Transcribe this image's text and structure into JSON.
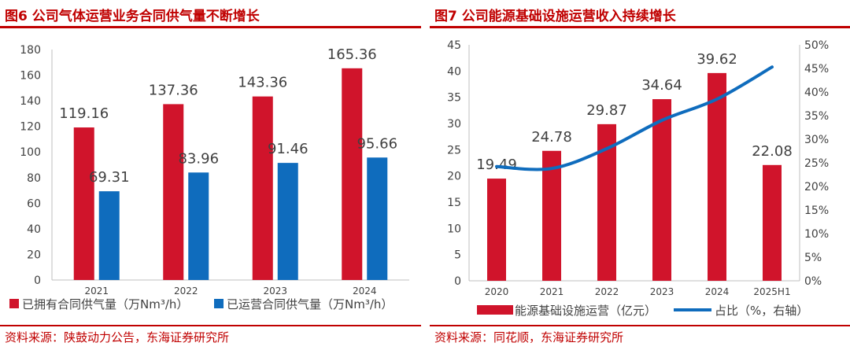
{
  "chart_data": [
    {
      "type": "bar",
      "figure_label": "图6",
      "title": "公司气体运营业务合同供气量不断增长",
      "categories": [
        "2021",
        "2022",
        "2023",
        "2024"
      ],
      "ylim": [
        0,
        180
      ],
      "yticks": [
        0,
        20,
        40,
        60,
        80,
        100,
        120,
        140,
        160,
        180
      ],
      "series": [
        {
          "name": "已拥有合同供气量（万Nm³/h）",
          "values": [
            119.16,
            137.36,
            143.36,
            165.36
          ],
          "color": "#d0142b"
        },
        {
          "name": "已运营合同供气量（万Nm³/h）",
          "values": [
            69.31,
            83.96,
            91.46,
            95.66
          ],
          "color": "#0f6cbd"
        }
      ],
      "value_labels": [
        [
          "119.16",
          "137.36",
          "143.36",
          "165.36"
        ],
        [
          "69.31",
          "83.96",
          "91.46",
          "95.66"
        ]
      ],
      "legend": "bottom",
      "grid": false,
      "source": "资料来源：陕鼓动力公告，东海证券研究所"
    },
    {
      "type": "bar",
      "figure_label": "图7",
      "title": "公司能源基础设施运营收入持续增长",
      "categories": [
        "2020",
        "2021",
        "2022",
        "2023",
        "2024",
        "2025H1"
      ],
      "ylim": [
        0,
        45
      ],
      "yticks": [
        0,
        5,
        10,
        15,
        20,
        25,
        30,
        35,
        40,
        45
      ],
      "y2lim": [
        0,
        50
      ],
      "y2ticks": [
        "0%",
        "5%",
        "10%",
        "15%",
        "20%",
        "25%",
        "30%",
        "35%",
        "40%",
        "45%",
        "50%"
      ],
      "series": [
        {
          "name": "能源基础设施运营（亿元）",
          "type": "bar",
          "values": [
            19.49,
            24.78,
            29.87,
            34.64,
            39.62,
            22.08
          ],
          "color": "#d0142b"
        },
        {
          "name": "占比（%，右轴）",
          "type": "line",
          "axis": "right",
          "values": [
            24.2,
            23.8,
            28,
            34,
            38.5,
            45.3
          ],
          "color": "#0f6cbd"
        }
      ],
      "value_labels": [
        "19.49",
        "24.78",
        "29.87",
        "34.64",
        "39.62",
        "22.08"
      ],
      "legend": "bottom",
      "grid": false,
      "source": "资料来源：同花顺，东海证券研究所"
    }
  ]
}
